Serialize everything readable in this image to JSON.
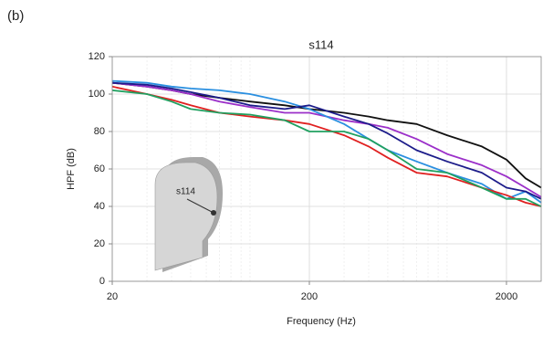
{
  "chart_data": {
    "type": "line",
    "panel_label": "(b)",
    "title": "s114",
    "inset_label": "s114",
    "x_label": "Frequency (Hz)",
    "y_label": "HPF (dB)",
    "x": [
      20,
      30,
      40,
      50,
      70,
      100,
      150,
      200,
      300,
      400,
      500,
      700,
      1000,
      1500,
      2000,
      2500,
      3000
    ],
    "series": [
      {
        "color": "#111111",
        "values": [
          106,
          104,
          102,
          100,
          98,
          96,
          94,
          92,
          90,
          88,
          86,
          84,
          78,
          72,
          65,
          55,
          50
        ]
      },
      {
        "color": "#9b2fc9",
        "values": [
          106,
          104,
          102,
          100,
          96,
          93,
          90,
          90,
          86,
          84,
          82,
          76,
          68,
          62,
          56,
          50,
          45
        ]
      },
      {
        "color": "#2a8fe0",
        "values": [
          107,
          106,
          104,
          103,
          102,
          100,
          96,
          92,
          84,
          76,
          70,
          64,
          58,
          52,
          44,
          48,
          42
        ]
      },
      {
        "color": "#e02020",
        "values": [
          104,
          100,
          97,
          94,
          90,
          88,
          86,
          84,
          78,
          72,
          66,
          58,
          56,
          50,
          46,
          42,
          40
        ]
      },
      {
        "color": "#20a060",
        "values": [
          102,
          100,
          96,
          92,
          90,
          89,
          86,
          80,
          80,
          76,
          70,
          60,
          58,
          50,
          44,
          44,
          40
        ]
      },
      {
        "color": "#1c1c8a",
        "values": [
          106,
          105,
          103,
          101,
          98,
          94,
          92,
          94,
          88,
          84,
          79,
          70,
          64,
          58,
          50,
          48,
          44
        ]
      }
    ],
    "xscale": "log",
    "xlim": [
      20,
      3000
    ],
    "xticks": [
      20,
      200,
      2000
    ],
    "ylim": [
      0,
      120
    ],
    "yticks": [
      0,
      20,
      40,
      60,
      80,
      100,
      120
    ],
    "grid": true
  }
}
